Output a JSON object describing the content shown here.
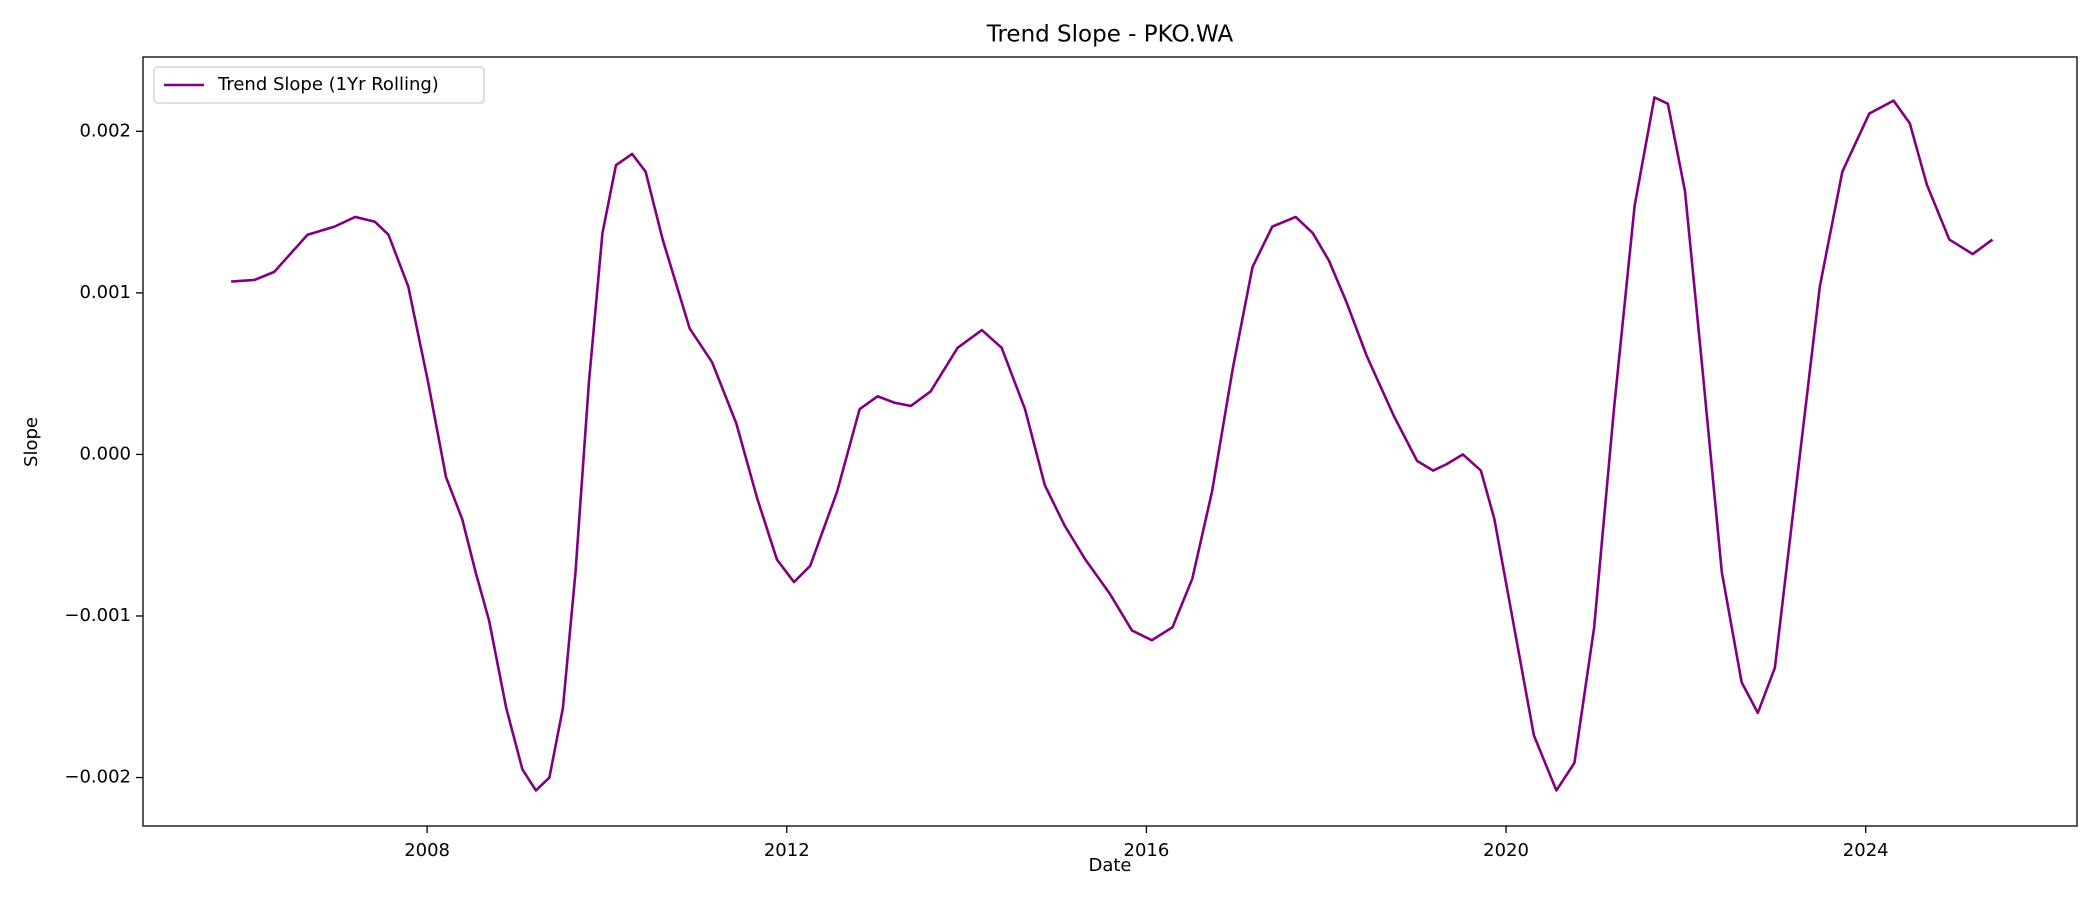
{
  "chart_data": {
    "type": "line",
    "title": "Trend Slope - PKO.WA",
    "xlabel": "Date",
    "ylabel": "Slope",
    "x": [
      2005.82,
      2006.08,
      2006.3,
      2006.67,
      2006.97,
      2007.2,
      2007.42,
      2007.57,
      2007.79,
      2008.01,
      2008.21,
      2008.39,
      2008.54,
      2008.69,
      2008.88,
      2009.06,
      2009.21,
      2009.36,
      2009.51,
      2009.65,
      2009.8,
      2009.95,
      2010.1,
      2010.28,
      2010.43,
      2010.62,
      2010.92,
      2011.17,
      2011.44,
      2011.67,
      2011.89,
      2012.08,
      2012.26,
      2012.56,
      2012.81,
      2013.01,
      2013.2,
      2013.38,
      2013.6,
      2013.9,
      2014.17,
      2014.39,
      2014.65,
      2014.87,
      2015.09,
      2015.32,
      2015.59,
      2015.84,
      2016.06,
      2016.29,
      2016.51,
      2016.73,
      2016.96,
      2017.18,
      2017.4,
      2017.66,
      2017.85,
      2018.03,
      2018.22,
      2018.45,
      2018.75,
      2019.01,
      2019.19,
      2019.34,
      2019.52,
      2019.72,
      2019.87,
      2020.09,
      2020.31,
      2020.56,
      2020.76,
      2020.98,
      2021.2,
      2021.43,
      2021.65,
      2021.8,
      2021.99,
      2022.17,
      2022.4,
      2022.62,
      2022.8,
      2022.99,
      2023.22,
      2023.49,
      2023.74,
      2024.04,
      2024.31,
      2024.49,
      2024.68,
      2024.93,
      2025.19,
      2025.41
    ],
    "series": [
      {
        "name": "Trend Slope (1Yr Rolling)",
        "color": "#800080",
        "values": [
          0.00107,
          0.00108,
          0.00113,
          0.00136,
          0.00141,
          0.00147,
          0.00144,
          0.00136,
          0.00104,
          0.00045,
          -0.00014,
          -0.0004,
          -0.00073,
          -0.00103,
          -0.00157,
          -0.00195,
          -0.00208,
          -0.002,
          -0.00157,
          -0.00073,
          0.00045,
          0.00137,
          0.00179,
          0.00186,
          0.00175,
          0.00133,
          0.00078,
          0.00057,
          0.00019,
          -0.00027,
          -0.00065,
          -0.00079,
          -0.00069,
          -0.00023,
          0.00028,
          0.00036,
          0.00032,
          0.0003,
          0.00039,
          0.00066,
          0.00077,
          0.00066,
          0.00028,
          -0.00019,
          -0.00044,
          -0.00065,
          -0.00086,
          -0.00109,
          -0.00115,
          -0.00107,
          -0.00077,
          -0.00023,
          0.00053,
          0.00116,
          0.00141,
          0.00147,
          0.00137,
          0.0012,
          0.00095,
          0.00061,
          0.00024,
          -4e-05,
          -0.0001,
          -6e-05,
          0,
          -0.0001,
          -0.0004,
          -0.00107,
          -0.00174,
          -0.00208,
          -0.00191,
          -0.00107,
          0.00028,
          0.00154,
          0.00221,
          0.00217,
          0.00163,
          0.00061,
          -0.00073,
          -0.00141,
          -0.0016,
          -0.00132,
          -0.00023,
          0.00104,
          0.00175,
          0.00211,
          0.00219,
          0.00205,
          0.00167,
          0.00133,
          0.00124,
          0.00133
        ]
      }
    ],
    "xlim": [
      2004.84,
      2026.35
    ],
    "xticks": [
      2008,
      2012,
      2016,
      2020,
      2024
    ],
    "ylim": [
      -0.0023,
      0.00246
    ],
    "yticks": [
      {
        "value": -0.002,
        "label": "−0.002"
      },
      {
        "value": -0.001,
        "label": "−0.001"
      },
      {
        "value": 0,
        "label": "0.000"
      },
      0.001,
      0.002
    ],
    "legend": "upper left"
  }
}
